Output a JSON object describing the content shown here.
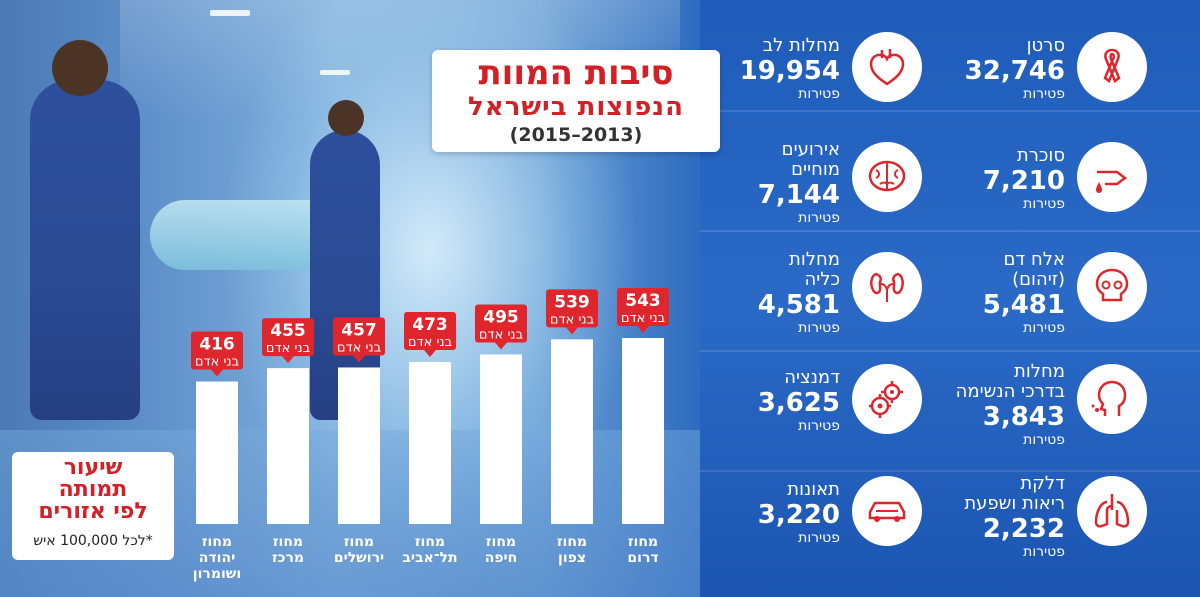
{
  "title": {
    "line1": "סיבות המוות",
    "line2": "הנפוצות בישראל",
    "line3": "(2015–2013)"
  },
  "legend": {
    "line1": "שיעור",
    "line2": "תמותה",
    "line3": "לפי אזורים",
    "note": "*לכל 100,000 איש"
  },
  "chart_data": {
    "type": "bar",
    "title": "שיעור תמותה לפי אזורים",
    "unit_label": "בני אדם",
    "categories": [
      [
        "מחוז",
        "יהודה",
        "ושומרון"
      ],
      [
        "מחוז",
        "מרכז"
      ],
      [
        "מחוז",
        "ירושלים"
      ],
      [
        "מחוז",
        "תל־אביב"
      ],
      [
        "מחוז",
        "חיפה"
      ],
      [
        "מחוז",
        "צפון"
      ],
      [
        "מחוז",
        "דרום"
      ]
    ],
    "values": [
      416,
      455,
      457,
      473,
      495,
      539,
      543
    ],
    "ylim": [
      0,
      600
    ],
    "bar_color": "#ffffff",
    "label_color": "#e0262d"
  },
  "causes": [
    {
      "name": [
        "סרטן"
      ],
      "value": "32,746",
      "unit": "פטירות",
      "icon": "ribbon-icon"
    },
    {
      "name": [
        "מחלות לב"
      ],
      "value": "19,954",
      "unit": "פטירות",
      "icon": "heart-icon"
    },
    {
      "name": [
        "סוכרת"
      ],
      "value": "7,210",
      "unit": "פטירות",
      "icon": "blood-drop-icon"
    },
    {
      "name": [
        "אירועים",
        "מוחיים"
      ],
      "value": "7,144",
      "unit": "פטירות",
      "icon": "brain-icon"
    },
    {
      "name": [
        "אלח דם",
        "(זיהום)"
      ],
      "value": "5,481",
      "unit": "פטירות",
      "icon": "skull-icon"
    },
    {
      "name": [
        "מחלות",
        "כליה"
      ],
      "value": "4,581",
      "unit": "פטירות",
      "icon": "kidney-icon"
    },
    {
      "name": [
        "מחלות",
        "בדרכי הנשימה"
      ],
      "value": "3,843",
      "unit": "פטירות",
      "icon": "head-breath-icon"
    },
    {
      "name": [
        "דמנציה"
      ],
      "value": "3,625",
      "unit": "פטירות",
      "icon": "gears-icon"
    },
    {
      "name": [
        "דלקת",
        "ריאות ושפעת"
      ],
      "value": "2,232",
      "unit": "פטירות",
      "icon": "lungs-icon"
    },
    {
      "name": [
        "תאונות"
      ],
      "value": "3,220",
      "unit": "פטירות",
      "icon": "car-icon"
    }
  ],
  "colors": {
    "accent": "#e0262d",
    "background": "#1f5cb9"
  }
}
